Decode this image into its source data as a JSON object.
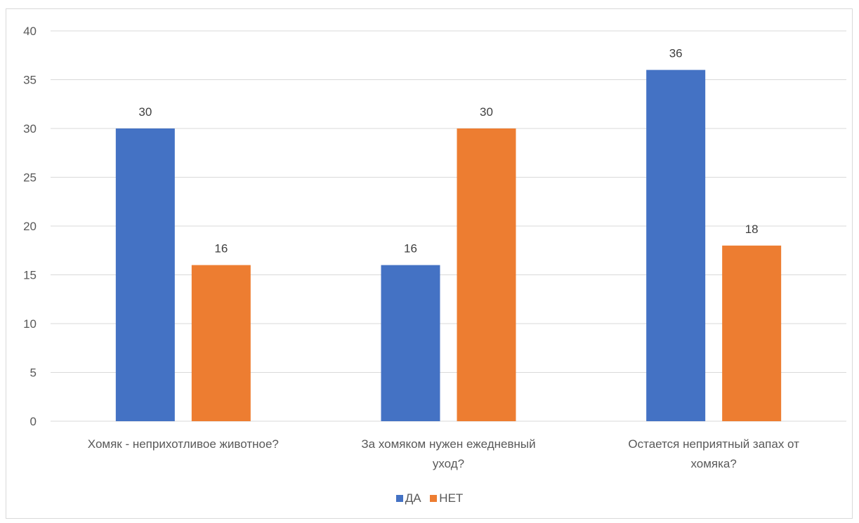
{
  "chart_data": {
    "type": "bar",
    "categories": [
      [
        "Хомяк - неприхотливое животное?"
      ],
      [
        "За хомяком нужен ежедневный",
        "уход?"
      ],
      [
        "Остается неприятный запах от",
        "хомяка?"
      ]
    ],
    "series": [
      {
        "name": "ДА",
        "color": "#4472C4",
        "values": [
          30,
          16,
          36
        ]
      },
      {
        "name": "НЕТ",
        "color": "#ED7D31",
        "values": [
          16,
          30,
          18
        ]
      }
    ],
    "ylim": [
      0,
      40
    ],
    "yticks": [
      0,
      5,
      10,
      15,
      20,
      25,
      30,
      35,
      40
    ],
    "grid": true,
    "legend": "bottom",
    "gridline_color": "#d9d9d9"
  }
}
